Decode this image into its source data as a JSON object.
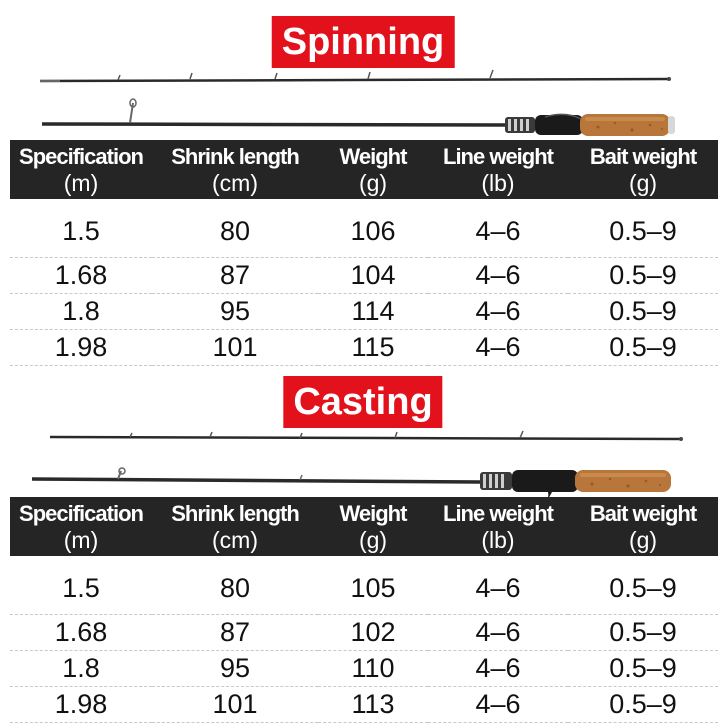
{
  "sections": [
    {
      "title": "Spinning",
      "headers": [
        {
          "label": "Specification",
          "unit": "(m)"
        },
        {
          "label": "Shrink length",
          "unit": "(cm)"
        },
        {
          "label": "Weight",
          "unit": "(g)"
        },
        {
          "label": "Line weight",
          "unit": "(lb)"
        },
        {
          "label": "Bait weight",
          "unit": "(g)"
        }
      ],
      "rows": [
        [
          "1.5",
          "80",
          "106",
          "4–6",
          "0.5–9"
        ],
        [
          "1.68",
          "87",
          "104",
          "4–6",
          "0.5–9"
        ],
        [
          "1.8",
          "95",
          "114",
          "4–6",
          "0.5–9"
        ],
        [
          "1.98",
          "101",
          "115",
          "4–6",
          "0.5–9"
        ]
      ]
    },
    {
      "title": "Casting",
      "headers": [
        {
          "label": "Specification",
          "unit": "(m)"
        },
        {
          "label": "Shrink length",
          "unit": "(cm)"
        },
        {
          "label": "Weight",
          "unit": "(g)"
        },
        {
          "label": "Line weight",
          "unit": "(lb)"
        },
        {
          "label": "Bait weight",
          "unit": "(g)"
        }
      ],
      "rows": [
        [
          "1.5",
          "80",
          "105",
          "4–6",
          "0.5–9"
        ],
        [
          "1.68",
          "87",
          "102",
          "4–6",
          "0.5–9"
        ],
        [
          "1.8",
          "95",
          "110",
          "4–6",
          "0.5–9"
        ],
        [
          "1.98",
          "101",
          "113",
          "4–6",
          "0.5–9"
        ]
      ]
    }
  ],
  "colors": {
    "title_badge": "#e2111b",
    "header_band": "#252525",
    "cork_handle": "#b9763a",
    "rod_blank": "#2a2a2a"
  }
}
